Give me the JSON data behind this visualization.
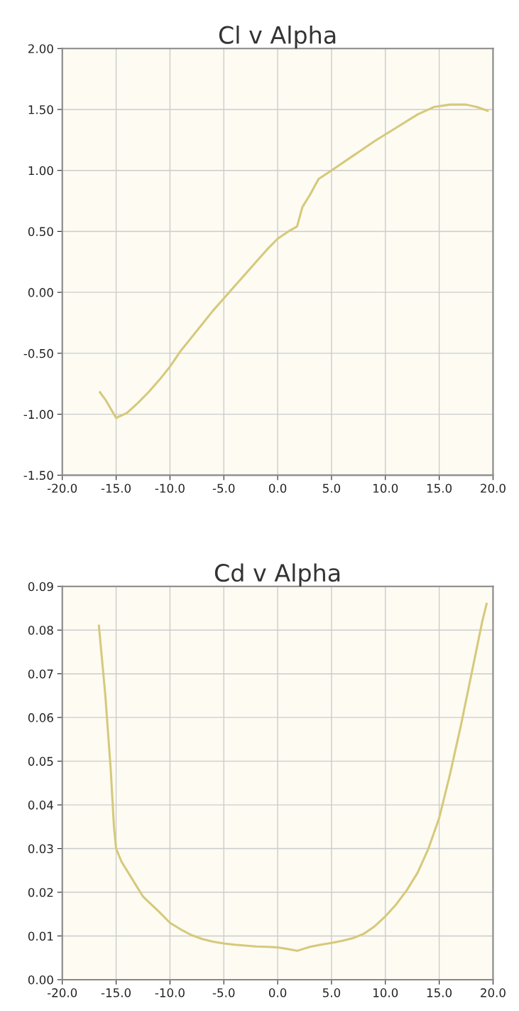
{
  "chart_data": [
    {
      "type": "line",
      "title": "Cl v Alpha",
      "grid": true,
      "legend": false,
      "marker": "none",
      "line_style": "solid",
      "xlim": [
        -20,
        20
      ],
      "xticks": [
        {
          "value": -20,
          "label": "-20.0"
        },
        {
          "value": -15,
          "label": "-15.0"
        },
        {
          "value": -10,
          "label": "-10.0"
        },
        {
          "value": -5,
          "label": "-5.0"
        },
        {
          "value": 0,
          "label": "0.0"
        },
        {
          "value": 5,
          "label": "5.0"
        },
        {
          "value": 10,
          "label": "10.0"
        },
        {
          "value": 15,
          "label": "15.0"
        },
        {
          "value": 20,
          "label": "20.0"
        }
      ],
      "ylim": [
        -1.5,
        2
      ],
      "yticks": [
        {
          "value": -1.5,
          "label": "-1.50"
        },
        {
          "value": -1,
          "label": "-1.00"
        },
        {
          "value": -0.5,
          "label": "-0.50"
        },
        {
          "value": 0,
          "label": "0.00"
        },
        {
          "value": 0.5,
          "label": "0.50"
        },
        {
          "value": 1,
          "label": "1.00"
        },
        {
          "value": 1.5,
          "label": "1.50"
        },
        {
          "value": 2,
          "label": "2.00"
        }
      ],
      "series": [
        {
          "color": "#d6c97c",
          "x": [
            -16.5,
            -16,
            -15,
            -14,
            -13,
            -12,
            -11,
            -10,
            -9,
            -8,
            -7,
            -6,
            -5,
            -4,
            -3,
            -2,
            -1,
            0,
            1,
            1.8,
            2.3,
            3,
            3.8,
            5,
            7,
            9,
            11,
            13,
            14.5,
            16,
            17.5,
            18.5,
            19.5
          ],
          "values": [
            -0.82,
            -0.88,
            -1.03,
            -0.99,
            -0.91,
            -0.82,
            -0.72,
            -0.61,
            -0.48,
            -0.37,
            -0.26,
            -0.15,
            -0.05,
            0.05,
            0.15,
            0.25,
            0.35,
            0.44,
            0.5,
            0.54,
            0.7,
            0.8,
            0.93,
            1.0,
            1.12,
            1.24,
            1.35,
            1.46,
            1.52,
            1.54,
            1.54,
            1.52,
            1.49
          ]
        }
      ]
    },
    {
      "type": "line",
      "title": "Cd v Alpha",
      "grid": true,
      "legend": false,
      "marker": "none",
      "line_style": "solid",
      "xlim": [
        -20,
        20
      ],
      "xticks": [
        {
          "value": -20,
          "label": "-20.0"
        },
        {
          "value": -15,
          "label": "-15.0"
        },
        {
          "value": -10,
          "label": "-10.0"
        },
        {
          "value": -5,
          "label": "-5.0"
        },
        {
          "value": 0,
          "label": "0.0"
        },
        {
          "value": 5,
          "label": "5.0"
        },
        {
          "value": 10,
          "label": "10.0"
        },
        {
          "value": 15,
          "label": "15.0"
        },
        {
          "value": 20,
          "label": "20.0"
        }
      ],
      "ylim": [
        0,
        0.09
      ],
      "yticks": [
        {
          "value": 0,
          "label": "0.00"
        },
        {
          "value": 0.01,
          "label": "0.01"
        },
        {
          "value": 0.02,
          "label": "0.02"
        },
        {
          "value": 0.03,
          "label": "0.03"
        },
        {
          "value": 0.04,
          "label": "0.04"
        },
        {
          "value": 0.05,
          "label": "0.05"
        },
        {
          "value": 0.06,
          "label": "0.06"
        },
        {
          "value": 0.07,
          "label": "0.07"
        },
        {
          "value": 0.08,
          "label": "0.08"
        },
        {
          "value": 0.09,
          "label": "0.09"
        }
      ],
      "series": [
        {
          "color": "#d6c97c",
          "x": [
            -16.6,
            -16,
            -15.5,
            -15.2,
            -15,
            -14.5,
            -14,
            -13,
            -12.5,
            -11,
            -10,
            -9,
            -8,
            -7,
            -6,
            -5,
            -4,
            -3,
            -2,
            -1,
            0,
            1,
            1.8,
            3,
            4,
            5,
            6,
            7,
            8,
            9,
            10,
            11,
            12,
            13,
            14,
            15,
            16,
            17,
            18,
            19,
            19.4
          ],
          "values": [
            0.081,
            0.065,
            0.048,
            0.035,
            0.03,
            0.027,
            0.025,
            0.021,
            0.019,
            0.0155,
            0.013,
            0.0115,
            0.0102,
            0.0093,
            0.0087,
            0.0083,
            0.008,
            0.0078,
            0.0076,
            0.0075,
            0.0074,
            0.007,
            0.0066,
            0.0075,
            0.008,
            0.0084,
            0.0089,
            0.0095,
            0.0105,
            0.0122,
            0.0145,
            0.0172,
            0.0205,
            0.0245,
            0.03,
            0.037,
            0.047,
            0.058,
            0.07,
            0.082,
            0.086
          ]
        }
      ]
    }
  ]
}
